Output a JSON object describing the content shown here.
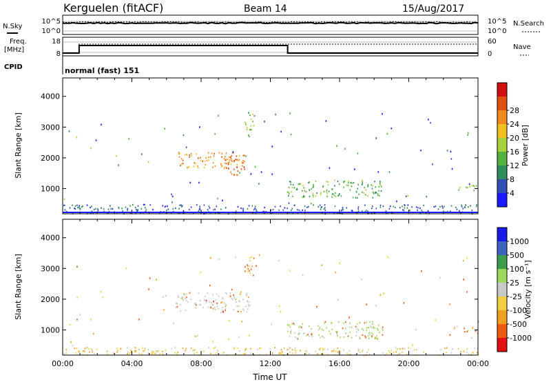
{
  "header": {
    "title": "Kerguelen (fitACF)",
    "beam": "Beam 14",
    "date": "15/Aug/2017"
  },
  "nsky_panel": {
    "left_label": "N.Sky",
    "left_ticks": [
      "10^5",
      "10^0"
    ],
    "right_label": "N.Search",
    "right_ticks": [
      "10^5",
      "10^0"
    ]
  },
  "freq_panel": {
    "label_line1": "Freq.",
    "label_line2": "[MHz]",
    "left_ticks": [
      "18",
      "8"
    ],
    "right_label": "Nave",
    "right_ticks": [
      "60",
      "0"
    ],
    "cpid_label": "CPID",
    "cpid_text": "normal (fast) 151"
  },
  "colors": {
    "power": [
      "#1a1aff",
      "#2e4eb5",
      "#2e8c5a",
      "#55b040",
      "#a8d23c",
      "#f0c020",
      "#f08a20",
      "#e05010",
      "#d01010"
    ],
    "velocity": [
      "#e01010",
      "#ee5a10",
      "#f0a020",
      "#f0d040",
      "#c8c8c8",
      "#9cd860",
      "#3c9c4c",
      "#3e64c0",
      "#1a1ae6"
    ]
  },
  "chart_data": [
    {
      "type": "heatmap",
      "name": "power",
      "xlabel": "",
      "ylabel": "Slant Range [km]",
      "xlim": [
        0,
        24
      ],
      "ylim": [
        180,
        4600
      ],
      "yticks": [
        "1000",
        "2000",
        "3000",
        "4000"
      ],
      "colorbar_label": "Power [dB]",
      "colorbar_ticks": [
        "4",
        "8",
        "12",
        "16",
        "20",
        "24",
        "28"
      ],
      "regions": [
        {
          "x0": 6.5,
          "x1": 10.5,
          "y0": 1700,
          "y1": 2200,
          "value": 22
        },
        {
          "x0": 9.3,
          "x1": 10.6,
          "y0": 1450,
          "y1": 2100,
          "value": 25
        },
        {
          "x0": 12.9,
          "x1": 18.5,
          "y0": 720,
          "y1": 1300,
          "value": 12
        },
        {
          "x0": 0,
          "x1": 24,
          "y0": 200,
          "y1": 500,
          "value": 6
        },
        {
          "x0": 10.5,
          "x1": 11.1,
          "y0": 2700,
          "y1": 3500,
          "value": 14
        },
        {
          "x0": 22.5,
          "x1": 24,
          "y0": 950,
          "y1": 1150,
          "value": 14
        }
      ]
    },
    {
      "type": "heatmap",
      "name": "velocity",
      "xlabel": "Time UT",
      "ylabel": "Slant Range [km]",
      "xlim": [
        0,
        24
      ],
      "ylim": [
        180,
        4600
      ],
      "xticks": [
        "00:00",
        "04:00",
        "08:00",
        "12:00",
        "16:00",
        "20:00",
        "00:00"
      ],
      "yticks": [
        "1000",
        "2000",
        "3000",
        "4000"
      ],
      "colorbar_label": "Velocity [m s⁻¹]",
      "colorbar_ticks": [
        "1000",
        "500",
        "100",
        "25",
        "-25",
        "-100",
        "-500",
        "-1000"
      ],
      "regions": [
        {
          "x0": 6.5,
          "x1": 10.8,
          "y0": 1600,
          "y1": 2250,
          "value": 0
        },
        {
          "x0": 12.9,
          "x1": 18.5,
          "y0": 720,
          "y1": 1300,
          "value": 30
        },
        {
          "x0": 0,
          "x1": 24,
          "y0": 200,
          "y1": 450,
          "value": -40
        },
        {
          "x0": 10.5,
          "x1": 11.1,
          "y0": 2700,
          "y1": 3500,
          "value": -80
        },
        {
          "x0": 22.5,
          "x1": 24,
          "y0": 950,
          "y1": 1150,
          "value": -150
        }
      ]
    }
  ]
}
